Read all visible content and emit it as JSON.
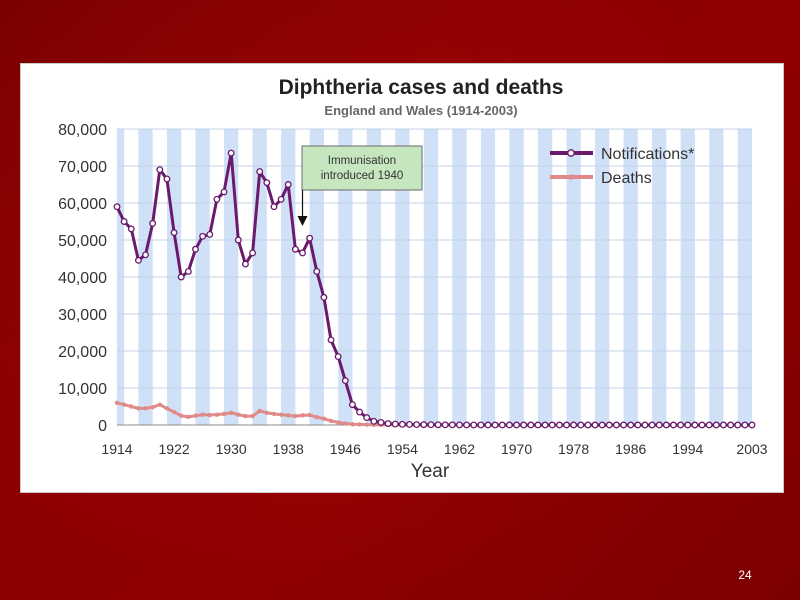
{
  "slide": {
    "number": "24"
  },
  "colors": {
    "notifications": "#6b1a6b",
    "notifications_marker_fill": "#ffffff",
    "deaths": "#e08a8a",
    "stripe": "#cfe0f7",
    "grid": "#c3d3ea",
    "callout_bg": "#c6e6c0"
  },
  "annotation": {
    "line1": "Immunisation",
    "line2": "introduced 1940",
    "year": 1940
  },
  "chart_data": {
    "type": "line",
    "title": "Diphtheria cases and deaths",
    "subtitle": "England and Wales (1914-2003)",
    "xlabel": "Year",
    "ylabel": "",
    "xlim": [
      1914,
      2003
    ],
    "ylim": [
      0,
      80000
    ],
    "grid": true,
    "legend_position": "top-right",
    "x_ticks": [
      "1914",
      "1922",
      "1930",
      "1938",
      "1946",
      "1954",
      "1962",
      "1970",
      "1978",
      "1986",
      "1994",
      "2003"
    ],
    "y_ticks": [
      "0",
      "10,000",
      "20,000",
      "30,000",
      "40,000",
      "50,000",
      "60,000",
      "70,000",
      "80,000"
    ],
    "x": [
      1914,
      1915,
      1916,
      1917,
      1918,
      1919,
      1920,
      1921,
      1922,
      1923,
      1924,
      1925,
      1926,
      1927,
      1928,
      1929,
      1930,
      1931,
      1932,
      1933,
      1934,
      1935,
      1936,
      1937,
      1938,
      1939,
      1940,
      1941,
      1942,
      1943,
      1944,
      1945,
      1946,
      1947,
      1948,
      1949,
      1950,
      1951,
      1952,
      1953,
      1954,
      1955,
      1956,
      1957,
      1958,
      1959,
      1960,
      1961,
      1962,
      1963,
      1964,
      1965,
      1966,
      1967,
      1968,
      1969,
      1970,
      1971,
      1972,
      1973,
      1974,
      1975,
      1976,
      1977,
      1978,
      1979,
      1980,
      1981,
      1982,
      1983,
      1984,
      1985,
      1986,
      1987,
      1988,
      1989,
      1990,
      1991,
      1992,
      1993,
      1994,
      1995,
      1996,
      1997,
      1998,
      1999,
      2000,
      2001,
      2002,
      2003
    ],
    "series": [
      {
        "name": "Notifications*",
        "values": [
          59000,
          55000,
          53000,
          44500,
          46000,
          54500,
          69000,
          66500,
          52000,
          40000,
          41500,
          47500,
          51000,
          51500,
          61000,
          63000,
          73500,
          50000,
          43500,
          46500,
          68500,
          65500,
          59000,
          61000,
          65000,
          47500,
          46500,
          50500,
          41500,
          34500,
          23000,
          18500,
          12000,
          5500,
          3500,
          2000,
          1000,
          700,
          400,
          250,
          180,
          150,
          120,
          100,
          80,
          60,
          50,
          40,
          30,
          20,
          15,
          12,
          10,
          10,
          8,
          8,
          6,
          6,
          5,
          5,
          4,
          4,
          3,
          3,
          3,
          3,
          2,
          2,
          2,
          2,
          2,
          2,
          2,
          2,
          2,
          2,
          2,
          2,
          2,
          2,
          2,
          2,
          2,
          2,
          2,
          2,
          2,
          2,
          2,
          2
        ]
      },
      {
        "name": "Deaths",
        "values": [
          6000,
          5500,
          5000,
          4500,
          4500,
          4800,
          5500,
          4500,
          3500,
          2500,
          2200,
          2500,
          2800,
          2700,
          2800,
          3000,
          3300,
          2800,
          2400,
          2400,
          3800,
          3300,
          3000,
          2800,
          2600,
          2400,
          2600,
          2700,
          2100,
          1700,
          1100,
          700,
          400,
          200,
          150,
          100,
          60,
          40,
          20,
          10,
          8,
          6,
          5,
          4,
          3,
          2,
          2,
          1,
          1,
          1,
          0,
          0,
          0,
          0,
          0,
          0,
          0,
          0,
          0,
          0,
          0,
          0,
          0,
          0,
          0,
          0,
          0,
          0,
          0,
          0,
          0,
          0,
          0,
          0,
          0,
          0,
          0,
          0,
          0,
          0,
          0,
          0,
          0,
          0,
          0,
          0,
          0,
          0,
          0,
          0
        ]
      }
    ]
  }
}
